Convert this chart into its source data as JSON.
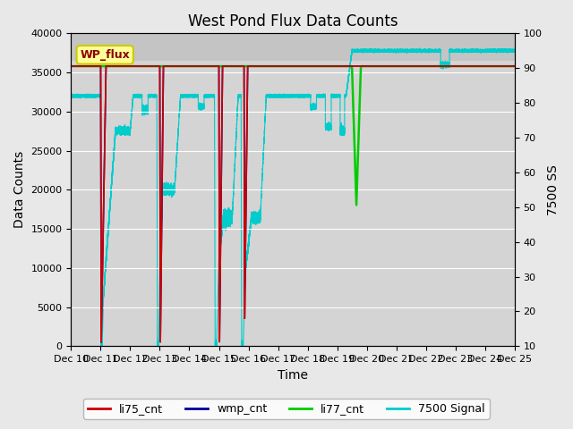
{
  "title": "West Pond Flux Data Counts",
  "xlabel": "Time",
  "ylabel_left": "Data Counts",
  "ylabel_right": "7500 SS",
  "ylim_left": [
    0,
    40000
  ],
  "ylim_right": [
    10,
    100
  ],
  "bg_color": "#e8e8e8",
  "plot_bg_color": "#d4d4d4",
  "highlight_bg_color": "#c8c8c8",
  "wp_flux_label": "WP_flux",
  "li75_color": "#cc0000",
  "wmp_color": "#000099",
  "li77_color": "#00cc00",
  "cyan_color": "#00cccc",
  "grid_color": "#ffffff",
  "legend_face": "#ffff99",
  "legend_edge": "#cccc00",
  "title_fontsize": 12,
  "axis_label_fontsize": 10,
  "tick_fontsize": 8
}
